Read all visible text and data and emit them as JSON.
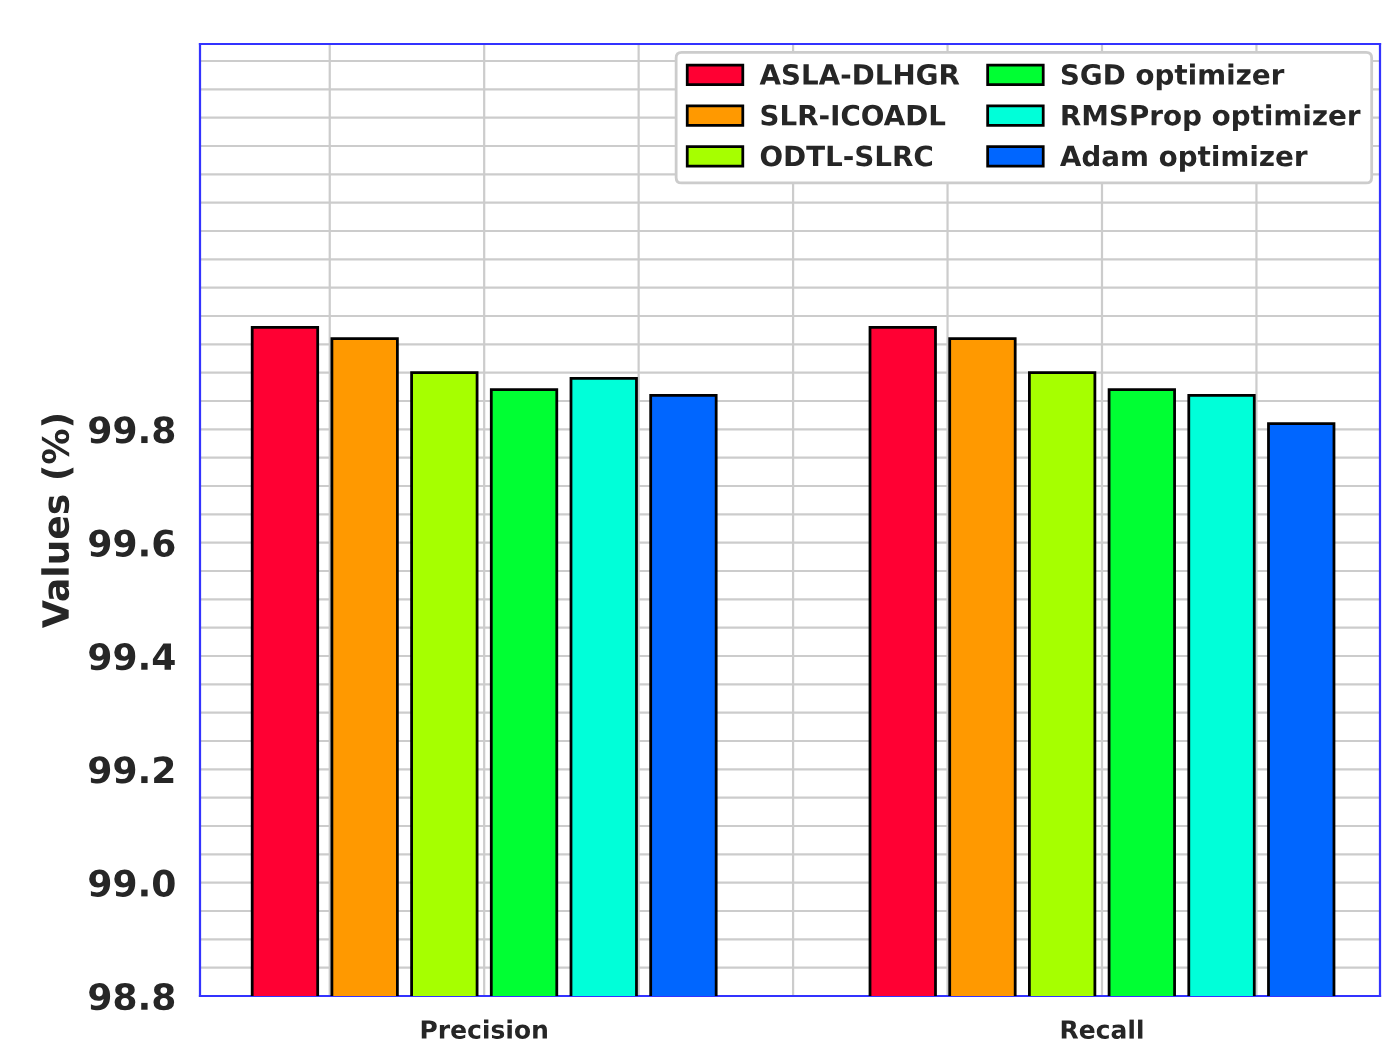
{
  "chart_data": {
    "type": "bar",
    "ylabel": "Values (%)",
    "categories": [
      "Precision",
      "Recall"
    ],
    "series": [
      {
        "name": "ASLA-DLHGR",
        "color": "#ff0033",
        "values": [
          99.98,
          99.98
        ]
      },
      {
        "name": "SLR-ICOADL",
        "color": "#ff9900",
        "values": [
          99.96,
          99.96
        ]
      },
      {
        "name": "ODTL-SLRC",
        "color": "#a6ff00",
        "values": [
          99.9,
          99.9
        ]
      },
      {
        "name": "SGD optimizer",
        "color": "#00ff33",
        "values": [
          99.87,
          99.87
        ]
      },
      {
        "name": "RMSProp optimizer",
        "color": "#00ffd9",
        "values": [
          99.89,
          99.86
        ]
      },
      {
        "name": "Adam optimizer",
        "color": "#0066ff",
        "values": [
          99.86,
          99.81
        ]
      }
    ],
    "ylim": [
      98.8,
      100.48
    ],
    "yticks": [
      {
        "value": 98.8,
        "label": "98.8"
      },
      {
        "value": 99.0,
        "label": "99.0"
      },
      {
        "value": 99.2,
        "label": "99.2"
      },
      {
        "value": 99.4,
        "label": "99.4"
      },
      {
        "value": 99.6,
        "label": "99.6"
      },
      {
        "value": 99.8,
        "label": "99.8"
      }
    ],
    "grid": true,
    "legend": "top right"
  }
}
